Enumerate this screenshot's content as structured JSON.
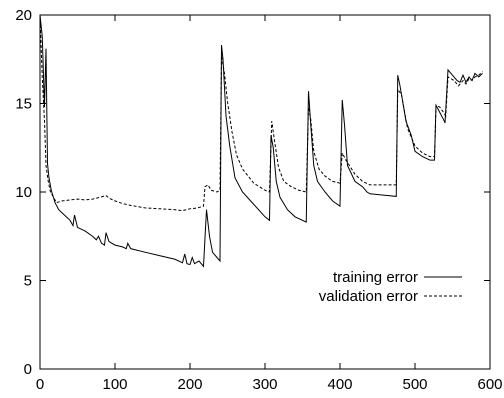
{
  "chart_data": {
    "type": "line",
    "xlim": [
      0,
      600
    ],
    "ylim": [
      0,
      20
    ],
    "x_ticks": [
      "0",
      "100",
      "200",
      "300",
      "400",
      "500",
      "600"
    ],
    "y_ticks": [
      "0",
      "5",
      "10",
      "15",
      "20"
    ],
    "grid": false,
    "legend_position": "right",
    "series": [
      {
        "name": "training error",
        "line_style": "solid",
        "points": [
          [
            0,
            20
          ],
          [
            3,
            18.8
          ],
          [
            6,
            14.8
          ],
          [
            8,
            18.1
          ],
          [
            10,
            11.6
          ],
          [
            12,
            10.8
          ],
          [
            15,
            10.1
          ],
          [
            20,
            9.4
          ],
          [
            25,
            9.0
          ],
          [
            30,
            8.8
          ],
          [
            40,
            8.4
          ],
          [
            44,
            8.1
          ],
          [
            46,
            8.7
          ],
          [
            50,
            8.0
          ],
          [
            60,
            7.8
          ],
          [
            70,
            7.5
          ],
          [
            75,
            7.3
          ],
          [
            78,
            7.5
          ],
          [
            82,
            7.1
          ],
          [
            86,
            7.0
          ],
          [
            88,
            7.7
          ],
          [
            92,
            7.2
          ],
          [
            100,
            7.0
          ],
          [
            110,
            6.9
          ],
          [
            115,
            6.8
          ],
          [
            117,
            7.1
          ],
          [
            121,
            6.8
          ],
          [
            140,
            6.6
          ],
          [
            160,
            6.4
          ],
          [
            180,
            6.2
          ],
          [
            190,
            6.0
          ],
          [
            193,
            6.5
          ],
          [
            196,
            5.95
          ],
          [
            200,
            5.9
          ],
          [
            203,
            6.3
          ],
          [
            206,
            5.95
          ],
          [
            212,
            6.1
          ],
          [
            218,
            5.8
          ],
          [
            222,
            9.0
          ],
          [
            226,
            7.5
          ],
          [
            230,
            6.6
          ],
          [
            236,
            6.3
          ],
          [
            240,
            6.1
          ],
          [
            242,
            18.3
          ],
          [
            244,
            17.5
          ],
          [
            248,
            14.3
          ],
          [
            253,
            12.6
          ],
          [
            260,
            10.8
          ],
          [
            270,
            10.0
          ],
          [
            285,
            9.3
          ],
          [
            300,
            8.6
          ],
          [
            306,
            8.4
          ],
          [
            308,
            13.2
          ],
          [
            311,
            12.5
          ],
          [
            315,
            10.6
          ],
          [
            320,
            9.7
          ],
          [
            330,
            9.0
          ],
          [
            340,
            8.6
          ],
          [
            355,
            8.3
          ],
          [
            358,
            15.7
          ],
          [
            361,
            13.8
          ],
          [
            365,
            11.5
          ],
          [
            370,
            10.6
          ],
          [
            380,
            10.0
          ],
          [
            390,
            9.5
          ],
          [
            400,
            9.2
          ],
          [
            403,
            15.2
          ],
          [
            406,
            13.8
          ],
          [
            410,
            11.5
          ],
          [
            420,
            10.6
          ],
          [
            430,
            10.3
          ],
          [
            436,
            10.0
          ],
          [
            440,
            9.9
          ],
          [
            475,
            9.75
          ],
          [
            477,
            16.6
          ],
          [
            480,
            16.0
          ],
          [
            488,
            14.0
          ],
          [
            495,
            13.2
          ],
          [
            500,
            12.3
          ],
          [
            510,
            12.0
          ],
          [
            520,
            11.8
          ],
          [
            526,
            11.8
          ],
          [
            528,
            14.9
          ],
          [
            533,
            14.5
          ],
          [
            538,
            14.1
          ],
          [
            540,
            13.9
          ],
          [
            544,
            16.9
          ],
          [
            550,
            16.6
          ],
          [
            556,
            16.3
          ],
          [
            560,
            16.2
          ],
          [
            564,
            16.6
          ],
          [
            568,
            16.2
          ],
          [
            572,
            16.5
          ],
          [
            576,
            16.3
          ],
          [
            580,
            16.7
          ],
          [
            585,
            16.5
          ],
          [
            590,
            16.7
          ]
        ]
      },
      {
        "name": "validation error",
        "line_style": "dashed",
        "points": [
          [
            0,
            20
          ],
          [
            3,
            16.5
          ],
          [
            6,
            14.0
          ],
          [
            8,
            11.5
          ],
          [
            11,
            10.6
          ],
          [
            14,
            10.0
          ],
          [
            18,
            9.7
          ],
          [
            22,
            9.4
          ],
          [
            30,
            9.5
          ],
          [
            40,
            9.55
          ],
          [
            50,
            9.6
          ],
          [
            60,
            9.55
          ],
          [
            70,
            9.6
          ],
          [
            80,
            9.7
          ],
          [
            88,
            9.8
          ],
          [
            92,
            9.65
          ],
          [
            100,
            9.5
          ],
          [
            110,
            9.35
          ],
          [
            120,
            9.25
          ],
          [
            140,
            9.1
          ],
          [
            160,
            9.05
          ],
          [
            180,
            9.0
          ],
          [
            190,
            8.95
          ],
          [
            200,
            9.05
          ],
          [
            210,
            9.1
          ],
          [
            218,
            9.2
          ],
          [
            220,
            10.3
          ],
          [
            224,
            10.4
          ],
          [
            228,
            10.1
          ],
          [
            236,
            10.0
          ],
          [
            240,
            10.1
          ],
          [
            242,
            17.7
          ],
          [
            246,
            16.7
          ],
          [
            250,
            15.1
          ],
          [
            256,
            13.4
          ],
          [
            262,
            12.1
          ],
          [
            270,
            11.3
          ],
          [
            285,
            10.5
          ],
          [
            300,
            10.1
          ],
          [
            306,
            10.0
          ],
          [
            309,
            14.0
          ],
          [
            312,
            13.1
          ],
          [
            318,
            11.4
          ],
          [
            325,
            10.6
          ],
          [
            335,
            10.3
          ],
          [
            345,
            10.1
          ],
          [
            355,
            10.0
          ],
          [
            358,
            14.8
          ],
          [
            361,
            14.1
          ],
          [
            365,
            12.3
          ],
          [
            372,
            11.3
          ],
          [
            380,
            10.9
          ],
          [
            390,
            10.6
          ],
          [
            400,
            10.5
          ],
          [
            403,
            12.2
          ],
          [
            408,
            11.8
          ],
          [
            420,
            11.0
          ],
          [
            430,
            10.6
          ],
          [
            440,
            10.4
          ],
          [
            475,
            10.4
          ],
          [
            477,
            15.8
          ],
          [
            482,
            15.5
          ],
          [
            490,
            13.6
          ],
          [
            500,
            12.6
          ],
          [
            510,
            12.2
          ],
          [
            520,
            12.0
          ],
          [
            526,
            12.0
          ],
          [
            528,
            14.9
          ],
          [
            533,
            14.8
          ],
          [
            538,
            14.5
          ],
          [
            541,
            14.3
          ],
          [
            544,
            16.5
          ],
          [
            552,
            16.3
          ],
          [
            558,
            16.0
          ],
          [
            564,
            16.3
          ],
          [
            568,
            16.1
          ],
          [
            572,
            16.4
          ],
          [
            576,
            16.3
          ],
          [
            580,
            16.5
          ],
          [
            585,
            16.6
          ],
          [
            590,
            16.8
          ]
        ]
      }
    ]
  }
}
